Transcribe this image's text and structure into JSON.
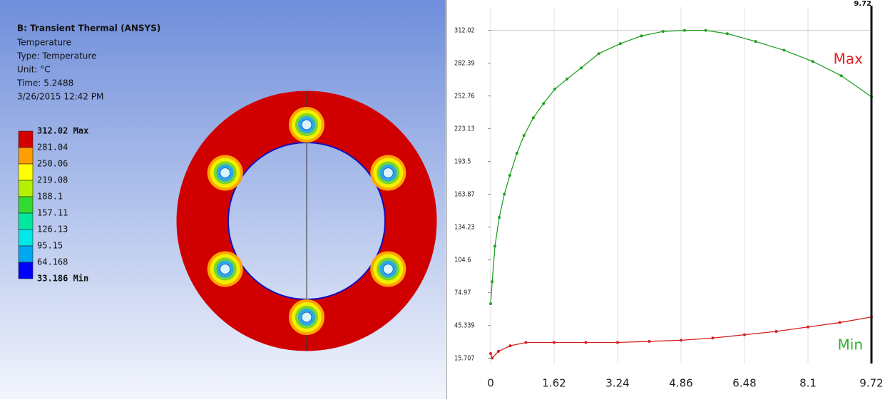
{
  "header": {
    "title": "B: Transient Thermal (ANSYS)",
    "lines": [
      "Temperature",
      "Type: Temperature",
      "Unit: °C",
      "Time: 5.2488",
      "3/26/2015 12:42 PM"
    ]
  },
  "legend": {
    "labels": [
      "312.02 Max",
      "281.04",
      "250.06",
      "219.08",
      "188.1",
      "157.11",
      "126.13",
      "95.15",
      "64.168",
      "33.186 Min"
    ],
    "colors": [
      "#d40000",
      "#ff9f00",
      "#ffff00",
      "#b5f000",
      "#2fdc2f",
      "#00e8a0",
      "#00e8e8",
      "#00a8f0",
      "#0000ff"
    ]
  },
  "chart_data": {
    "type": "line",
    "xlim": [
      0,
      9.72
    ],
    "xticks": [
      0,
      1.62,
      3.24,
      4.86,
      6.48,
      8.1,
      9.72
    ],
    "ylim": [
      11,
      333
    ],
    "yticks": [
      15.707,
      45.339,
      74.97,
      104.6,
      134.23,
      163.87,
      193.5,
      223.13,
      252.76,
      282.39,
      312.02
    ],
    "grid": true,
    "cursor_x": 9.72,
    "series": [
      {
        "name": "Max",
        "color": "#22a022",
        "label_color": "#e02020",
        "x": [
          0,
          0.04,
          0.11,
          0.22,
          0.35,
          0.49,
          0.67,
          0.85,
          1.09,
          1.35,
          1.64,
          1.95,
          2.31,
          2.76,
          3.31,
          3.85,
          4.4,
          4.95,
          5.49,
          6.04,
          6.76,
          7.49,
          8.22,
          8.95,
          9.72
        ],
        "values": [
          65,
          85,
          117,
          143,
          164,
          181,
          201,
          217,
          233,
          246,
          259,
          268,
          278,
          291,
          300,
          307,
          311,
          312,
          312,
          309,
          302,
          294,
          284,
          271,
          252
        ]
      },
      {
        "name": "Min",
        "color": "#d42020",
        "label_color": "#30b030",
        "x": [
          0,
          0.04,
          0.2,
          0.5,
          0.9,
          1.62,
          2.43,
          3.24,
          4.05,
          4.86,
          5.67,
          6.48,
          7.29,
          8.1,
          8.91,
          9.72
        ],
        "values": [
          20,
          16,
          22,
          27,
          30,
          30,
          30,
          30,
          31,
          32,
          34,
          37,
          40,
          44,
          48,
          53
        ]
      }
    ]
  }
}
